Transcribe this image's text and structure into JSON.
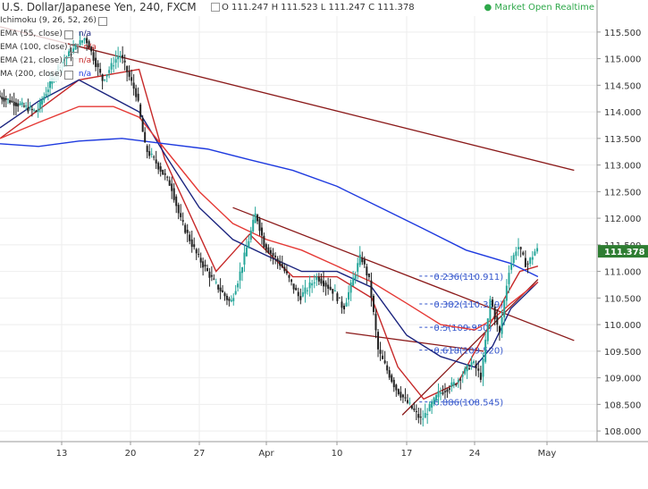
{
  "header": {
    "title": "U.S. Dollar/Japanese Yen, 240, FXCM",
    "ohlc": "O 111.247  H 111.523  L 111.247  C 111.378",
    "status": "● Market Open Realtime"
  },
  "indicators": [
    {
      "name": "Ichimoku (9, 26, 52, 26)",
      "value": "",
      "color": "#aaaaaa"
    },
    {
      "name": "EMA (55, close)",
      "value": "n/a",
      "color": "#1a237e"
    },
    {
      "name": "EMA (100, close)",
      "value": "n/a",
      "color": "#c62828"
    },
    {
      "name": "EMA (21, close)",
      "value": "n/a",
      "color": "#c62828"
    },
    {
      "name": "MA (200, close)",
      "value": "n/a",
      "color": "#1e3adf"
    }
  ],
  "chart_data": {
    "type": "line",
    "title": "U.S. Dollar/Japanese Yen, 240, FXCM",
    "x_ticks": [
      "13",
      "20",
      "27",
      "Apr",
      "10",
      "17",
      "24",
      "May"
    ],
    "y_ticks": [
      "108.000",
      "108.500",
      "109.000",
      "109.500",
      "110.000",
      "110.500",
      "111.000",
      "111.500",
      "112.000",
      "112.500",
      "113.000",
      "113.500",
      "114.000",
      "114.500",
      "115.000",
      "115.500"
    ],
    "ylim": [
      107.8,
      115.8
    ],
    "last_price": {
      "value": 111.378,
      "label": "111.378"
    },
    "price_path": [
      [
        0,
        114.3
      ],
      [
        5,
        114.0
      ],
      [
        8,
        114.9
      ],
      [
        11,
        115.4
      ],
      [
        13,
        114.6
      ],
      [
        15,
        115.1
      ],
      [
        17,
        114.3
      ],
      [
        18,
        113.3
      ],
      [
        19,
        113.1
      ],
      [
        21,
        112.6
      ],
      [
        22,
        112.0
      ],
      [
        24,
        111.3
      ],
      [
        26,
        110.8
      ],
      [
        27,
        110.6
      ],
      [
        28,
        110.4
      ],
      [
        29,
        110.9
      ],
      [
        30,
        111.5
      ],
      [
        31,
        112.1
      ],
      [
        32,
        111.5
      ],
      [
        34,
        111.1
      ],
      [
        36,
        110.5
      ],
      [
        38,
        110.9
      ],
      [
        40,
        110.6
      ],
      [
        41,
        110.3
      ],
      [
        43,
        111.3
      ],
      [
        44,
        110.8
      ],
      [
        45,
        109.5
      ],
      [
        47,
        108.8
      ],
      [
        48,
        108.6
      ],
      [
        50,
        108.2
      ],
      [
        52,
        108.7
      ],
      [
        54,
        108.9
      ],
      [
        56,
        109.3
      ],
      [
        57,
        109.0
      ],
      [
        58,
        110.5
      ],
      [
        59,
        109.8
      ],
      [
        60,
        111.0
      ],
      [
        61,
        111.5
      ],
      [
        62,
        111.1
      ],
      [
        63,
        111.4
      ]
    ],
    "series": [
      {
        "name": "EMA (21, close)",
        "color": "#c62828",
        "x": [
          0,
          10,
          17,
          20,
          26,
          30,
          35,
          40,
          44,
          47,
          50,
          54,
          58,
          61,
          63
        ],
        "values": [
          113.5,
          114.6,
          114.8,
          113.1,
          111.0,
          111.7,
          110.9,
          110.9,
          110.5,
          109.2,
          108.6,
          108.9,
          110.1,
          111.0,
          111.1
        ]
      },
      {
        "name": "EMA (55, close)",
        "color": "#1a237e",
        "x": [
          0,
          5,
          10,
          17,
          20,
          24,
          28,
          32,
          36,
          40,
          44,
          48,
          52,
          56,
          58,
          60,
          63
        ],
        "values": [
          113.7,
          114.2,
          114.6,
          114.0,
          113.2,
          112.2,
          111.6,
          111.3,
          111.0,
          111.0,
          110.7,
          109.8,
          109.4,
          109.2,
          109.6,
          110.3,
          110.8
        ]
      },
      {
        "name": "EMA (100, close)",
        "color": "#e53935",
        "x": [
          0,
          5,
          10,
          14,
          17,
          20,
          24,
          28,
          32,
          36,
          40,
          44,
          48,
          52,
          56,
          58,
          60,
          63
        ],
        "values": [
          113.5,
          113.8,
          114.1,
          114.1,
          113.9,
          113.3,
          112.5,
          111.9,
          111.6,
          111.4,
          111.1,
          110.8,
          110.4,
          110.0,
          109.9,
          110.1,
          110.4,
          110.8
        ]
      },
      {
        "name": "MA (200, close)",
        "color": "#1e3adf",
        "x": [
          0,
          5,
          10,
          15,
          20,
          25,
          30,
          35,
          40,
          45,
          50,
          55,
          60,
          63
        ],
        "values": [
          113.4,
          113.35,
          113.45,
          113.5,
          113.4,
          113.3,
          113.1,
          112.9,
          112.6,
          112.2,
          111.8,
          111.4,
          111.15,
          110.9
        ]
      }
    ],
    "trendlines": [
      [
        [
          0,
          115.6
        ],
        [
          67,
          112.9
        ]
      ],
      [
        [
          28,
          112.2
        ],
        [
          67,
          109.7
        ]
      ],
      [
        [
          41,
          109.85
        ],
        [
          57,
          109.5
        ]
      ],
      [
        [
          47.5,
          108.3
        ],
        [
          63,
          110.85
        ]
      ]
    ],
    "fibonacci": [
      {
        "label": "0.236(110.911)",
        "value": 110.911
      },
      {
        "label": "0.382(110.389)",
        "value": 110.389
      },
      {
        "label": "0.5(109.950)",
        "value": 109.95
      },
      {
        "label": "0.618(109.520)",
        "value": 109.52
      },
      {
        "label": "0.886(108.545)",
        "value": 108.545
      }
    ]
  }
}
